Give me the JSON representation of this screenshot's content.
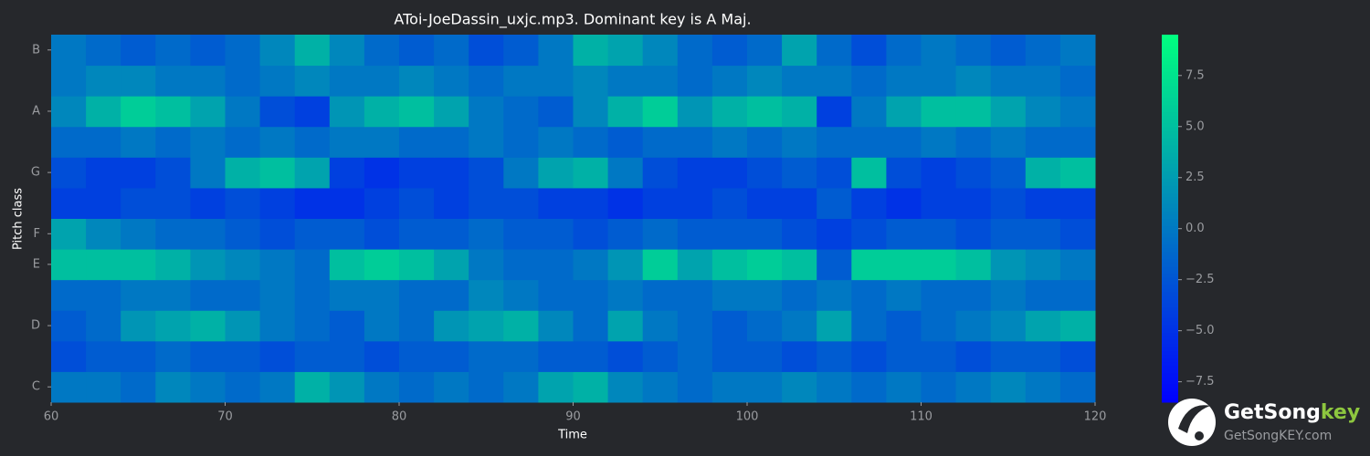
{
  "chart_data": {
    "type": "heatmap",
    "title": "AToi-JoeDassin_uxjc.mp3. Dominant key is A Maj.",
    "xlabel": "Time",
    "ylabel": "Pitch class",
    "categories": [
      "C",
      null,
      "D",
      null,
      "E",
      "F",
      null,
      "G",
      null,
      "A",
      null,
      "B"
    ],
    "x": [
      60,
      62,
      64,
      66,
      68,
      70,
      72,
      74,
      76,
      78,
      80,
      82,
      84,
      86,
      88,
      90,
      92,
      94,
      96,
      98,
      100,
      102,
      104,
      106,
      108,
      110,
      112,
      114,
      116,
      118
    ],
    "xlim": [
      60,
      120
    ],
    "xticks": [
      60,
      70,
      80,
      90,
      100,
      110,
      120
    ],
    "colormap": "winter",
    "clim": [
      -8.5,
      9.5
    ],
    "cticks": [
      {
        "value": -7.5,
        "label": "−7.5"
      },
      {
        "value": -5,
        "label": "−5.0"
      },
      {
        "value": -2.5,
        "label": "−2.5"
      },
      {
        "value": 0,
        "label": "0.0"
      },
      {
        "value": 2.5,
        "label": "2.5"
      },
      {
        "value": 5,
        "label": "5.0"
      },
      {
        "value": 7.5,
        "label": "7.5"
      }
    ],
    "values": [
      [
        0,
        0,
        -1,
        1,
        0,
        -1,
        0,
        4,
        2,
        0,
        -1,
        0,
        -1,
        0,
        3,
        4,
        1,
        0,
        -1,
        0,
        0,
        1,
        0,
        -1,
        0,
        -1,
        0,
        1,
        0,
        -1
      ],
      [
        -3,
        -2,
        -2,
        -1,
        -2,
        -2,
        -3,
        -2,
        -2,
        -3,
        -2,
        -2,
        -1,
        -1,
        -2,
        -2,
        -3,
        -2,
        -1,
        -2,
        -2,
        -3,
        -2,
        -3,
        -2,
        -2,
        -3,
        -2,
        -2,
        -3
      ],
      [
        -2,
        -1,
        2,
        3,
        4,
        2,
        0,
        -1,
        -2,
        0,
        -1,
        2,
        3,
        4,
        1,
        -1,
        3,
        0,
        -1,
        -2,
        -1,
        0,
        3,
        -1,
        -2,
        -1,
        0,
        1,
        3,
        4
      ],
      [
        -1,
        -1,
        0,
        0,
        -1,
        -1,
        0,
        -1,
        0,
        0,
        -1,
        -1,
        1,
        0,
        -1,
        -1,
        0,
        -1,
        -1,
        0,
        0,
        -1,
        0,
        -1,
        0,
        -1,
        -1,
        0,
        -1,
        -1
      ],
      [
        5,
        5,
        5,
        4,
        2,
        1,
        0,
        -1,
        5,
        6,
        5,
        3,
        0,
        -1,
        -1,
        0,
        2,
        6,
        3,
        5,
        6,
        5,
        -2,
        6,
        6,
        6,
        5,
        2,
        1,
        0
      ],
      [
        3,
        1,
        0,
        -1,
        -1,
        -2,
        -3,
        -2,
        -2,
        -3,
        -2,
        -2,
        -1,
        -2,
        -2,
        -3,
        -2,
        -1,
        -2,
        -2,
        -2,
        -3,
        -4,
        -3,
        -2,
        -2,
        -3,
        -2,
        -2,
        -3
      ],
      [
        -4,
        -4,
        -3,
        -3,
        -4,
        -3,
        -4,
        -5,
        -5,
        -4,
        -3,
        -4,
        -3,
        -3,
        -4,
        -4,
        -5,
        -4,
        -4,
        -3,
        -4,
        -4,
        -2,
        -4,
        -5,
        -4,
        -4,
        -3,
        -4,
        -4
      ],
      [
        -3,
        -4,
        -4,
        -3,
        0,
        4,
        5,
        3,
        -4,
        -5,
        -4,
        -4,
        -3,
        0,
        3,
        4,
        0,
        -3,
        -4,
        -4,
        -3,
        -2,
        -3,
        5,
        -3,
        -4,
        -3,
        -2,
        4,
        5
      ],
      [
        -1,
        -1,
        0,
        -1,
        0,
        -1,
        0,
        -1,
        0,
        0,
        -1,
        -1,
        0,
        -1,
        0,
        -1,
        -2,
        -1,
        -1,
        0,
        -1,
        0,
        -1,
        -1,
        -1,
        0,
        -1,
        0,
        -1,
        -1
      ],
      [
        1,
        4,
        6,
        5,
        3,
        0,
        -3,
        -4,
        2,
        4,
        5,
        3,
        0,
        -1,
        -2,
        1,
        4,
        6,
        2,
        4,
        5,
        4,
        -4,
        0,
        3,
        5,
        5,
        3,
        1,
        0
      ],
      [
        0,
        1,
        1,
        0,
        0,
        -1,
        0,
        1,
        0,
        0,
        1,
        0,
        -1,
        0,
        0,
        1,
        0,
        0,
        -1,
        0,
        1,
        0,
        0,
        -1,
        0,
        0,
        1,
        0,
        0,
        -1
      ],
      [
        0,
        -1,
        -2,
        -1,
        -2,
        -1,
        1,
        4,
        1,
        -1,
        -2,
        -1,
        -3,
        -2,
        0,
        4,
        3,
        1,
        -1,
        -2,
        -1,
        3,
        -1,
        -3,
        -1,
        0,
        -1,
        -2,
        -1,
        0
      ]
    ]
  },
  "watermark": {
    "brand": "GetSong",
    "brand_accent": "key",
    "url": "GetSongKEY.com"
  }
}
